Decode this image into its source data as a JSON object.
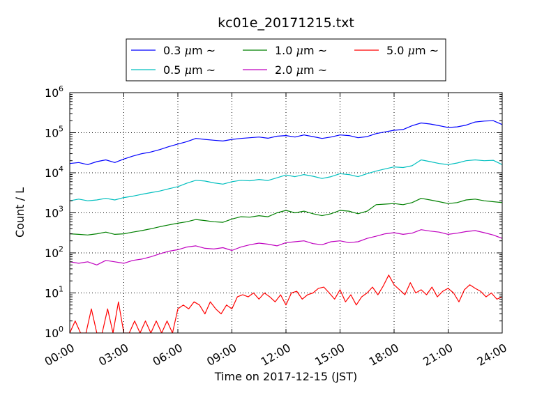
{
  "chart_data": {
    "type": "line",
    "title": "kc01e_20171215.txt",
    "xlabel": "Time on 2017-12-15 (JST)",
    "ylabel": "Count / L",
    "yscale": "log",
    "xlim": [
      0,
      24
    ],
    "ylim": [
      1,
      1000000
    ],
    "x_unit": "hour",
    "grid": true,
    "legend_position": "top-center (above plot)",
    "x_tick_labels": [
      "00:00",
      "03:00",
      "06:00",
      "09:00",
      "12:00",
      "15:00",
      "18:00",
      "21:00",
      "24:00"
    ],
    "x_ticks": [
      0,
      3,
      6,
      9,
      12,
      15,
      18,
      21,
      24
    ],
    "y_ticks": [
      {
        "value": 1,
        "base": "10",
        "exp": "0"
      },
      {
        "value": 10,
        "base": "10",
        "exp": "1"
      },
      {
        "value": 100,
        "base": "10",
        "exp": "2"
      },
      {
        "value": 1000,
        "base": "10",
        "exp": "3"
      },
      {
        "value": 10000,
        "base": "10",
        "exp": "4"
      },
      {
        "value": 100000,
        "base": "10",
        "exp": "5"
      },
      {
        "value": 1000000,
        "base": "10",
        "exp": "6"
      }
    ],
    "series": [
      {
        "name": "0.3 μm ~",
        "legend_prefix": "0.3 ",
        "legend_unit": "μm",
        "legend_suffix": "~",
        "color": "#0000ff",
        "x": [
          0,
          0.5,
          1,
          1.5,
          2,
          2.5,
          3,
          3.5,
          4,
          4.5,
          5,
          5.5,
          6,
          6.5,
          7,
          7.5,
          8,
          8.5,
          9,
          9.5,
          10,
          10.5,
          11,
          11.5,
          12,
          12.5,
          13,
          13.5,
          14,
          14.5,
          15,
          15.5,
          16,
          16.5,
          17,
          17.5,
          18,
          18.5,
          19,
          19.5,
          20,
          20.5,
          21,
          21.5,
          22,
          22.5,
          23,
          23.5,
          24
        ],
        "y": [
          17000,
          18000,
          16000,
          19000,
          21000,
          18000,
          22000,
          26000,
          30000,
          33000,
          38000,
          45000,
          52000,
          60000,
          72000,
          68000,
          65000,
          62000,
          68000,
          72000,
          75000,
          78000,
          73000,
          82000,
          85000,
          78000,
          88000,
          80000,
          72000,
          78000,
          88000,
          85000,
          75000,
          80000,
          95000,
          105000,
          115000,
          120000,
          150000,
          175000,
          165000,
          150000,
          135000,
          140000,
          155000,
          185000,
          195000,
          200000,
          160000
        ]
      },
      {
        "name": "0.5 μm ~",
        "legend_prefix": "0.5 ",
        "legend_unit": "μm",
        "legend_suffix": "~",
        "color": "#00bfbf",
        "x": [
          0,
          0.5,
          1,
          1.5,
          2,
          2.5,
          3,
          3.5,
          4,
          4.5,
          5,
          5.5,
          6,
          6.5,
          7,
          7.5,
          8,
          8.5,
          9,
          9.5,
          10,
          10.5,
          11,
          11.5,
          12,
          12.5,
          13,
          13.5,
          14,
          14.5,
          15,
          15.5,
          16,
          16.5,
          17,
          17.5,
          18,
          18.5,
          19,
          19.5,
          20,
          20.5,
          21,
          21.5,
          22,
          22.5,
          23,
          23.5,
          24
        ],
        "y": [
          2000,
          2200,
          2000,
          2100,
          2300,
          2100,
          2400,
          2600,
          2900,
          3200,
          3500,
          4000,
          4500,
          5500,
          6500,
          6200,
          5600,
          5200,
          6000,
          6500,
          6300,
          6800,
          6400,
          7500,
          8800,
          8000,
          9000,
          8200,
          7200,
          8000,
          9500,
          9000,
          8000,
          9500,
          11000,
          12500,
          14000,
          13500,
          15000,
          21000,
          19000,
          17000,
          16000,
          17500,
          20000,
          21000,
          20000,
          20500,
          16000
        ]
      },
      {
        "name": "1.0 μm ~",
        "legend_prefix": "1.0 ",
        "legend_unit": "μm",
        "legend_suffix": "~",
        "color": "#008000",
        "x": [
          0,
          0.5,
          1,
          1.5,
          2,
          2.5,
          3,
          3.5,
          4,
          4.5,
          5,
          5.5,
          6,
          6.5,
          7,
          7.5,
          8,
          8.5,
          9,
          9.5,
          10,
          10.5,
          11,
          11.5,
          12,
          12.5,
          13,
          13.5,
          14,
          14.5,
          15,
          15.5,
          16,
          16.5,
          17,
          17.5,
          18,
          18.5,
          19,
          19.5,
          20,
          20.5,
          21,
          21.5,
          22,
          22.5,
          23,
          23.5,
          24
        ],
        "y": [
          300,
          290,
          280,
          300,
          330,
          290,
          300,
          330,
          360,
          400,
          450,
          500,
          550,
          600,
          680,
          640,
          600,
          580,
          700,
          800,
          780,
          850,
          800,
          1000,
          1150,
          1000,
          1100,
          950,
          850,
          950,
          1150,
          1100,
          950,
          1100,
          1600,
          1650,
          1700,
          1600,
          1800,
          2300,
          2100,
          1900,
          1700,
          1800,
          2100,
          2200,
          2000,
          1900,
          1800
        ]
      },
      {
        "name": "2.0 μm ~",
        "legend_prefix": "2.0 ",
        "legend_unit": "μm",
        "legend_suffix": "~",
        "color": "#bf00bf",
        "x": [
          0,
          0.5,
          1,
          1.5,
          2,
          2.5,
          3,
          3.5,
          4,
          4.5,
          5,
          5.5,
          6,
          6.5,
          7,
          7.5,
          8,
          8.5,
          9,
          9.5,
          10,
          10.5,
          11,
          11.5,
          12,
          12.5,
          13,
          13.5,
          14,
          14.5,
          15,
          15.5,
          16,
          16.5,
          17,
          17.5,
          18,
          18.5,
          19,
          19.5,
          20,
          20.5,
          21,
          21.5,
          22,
          22.5,
          23,
          23.5,
          24
        ],
        "y": [
          60,
          55,
          60,
          50,
          65,
          60,
          55,
          65,
          70,
          80,
          95,
          110,
          120,
          140,
          150,
          130,
          125,
          135,
          115,
          140,
          160,
          175,
          165,
          150,
          180,
          190,
          200,
          170,
          160,
          190,
          200,
          180,
          190,
          230,
          260,
          300,
          320,
          290,
          310,
          380,
          350,
          330,
          290,
          310,
          340,
          360,
          320,
          280,
          230
        ]
      },
      {
        "name": "5.0 μm ~",
        "legend_prefix": "5.0 ",
        "legend_unit": "μm",
        "legend_suffix": "~",
        "color": "#ff0000",
        "x": [
          0,
          0.3,
          0.6,
          0.9,
          1.2,
          1.5,
          1.8,
          2.1,
          2.4,
          2.7,
          3.0,
          3.3,
          3.6,
          3.9,
          4.2,
          4.5,
          4.8,
          5.1,
          5.4,
          5.7,
          6.0,
          6.3,
          6.6,
          6.9,
          7.2,
          7.5,
          7.8,
          8.1,
          8.4,
          8.7,
          9.0,
          9.3,
          9.6,
          9.9,
          10.2,
          10.5,
          10.8,
          11.1,
          11.4,
          11.7,
          12.0,
          12.3,
          12.6,
          12.9,
          13.2,
          13.5,
          13.8,
          14.1,
          14.4,
          14.7,
          15.0,
          15.3,
          15.6,
          15.9,
          16.2,
          16.5,
          16.8,
          17.1,
          17.4,
          17.7,
          18.0,
          18.3,
          18.6,
          18.9,
          19.2,
          19.5,
          19.8,
          20.1,
          20.4,
          20.7,
          21.0,
          21.3,
          21.6,
          21.9,
          22.2,
          22.5,
          22.8,
          23.1,
          23.4,
          23.7,
          24.0
        ],
        "y": [
          1,
          2,
          1,
          1,
          4,
          1,
          1,
          4,
          1,
          6,
          1,
          1,
          2,
          1,
          2,
          1,
          2,
          1,
          2,
          1,
          4,
          5,
          4,
          6,
          5,
          3,
          6,
          4,
          3,
          5,
          4,
          8,
          9,
          8,
          10,
          7,
          10,
          8,
          6,
          9,
          5,
          10,
          11,
          7,
          9,
          10,
          13,
          14,
          10,
          7,
          12,
          6,
          9,
          5,
          8,
          10,
          14,
          9,
          15,
          28,
          16,
          12,
          9,
          18,
          10,
          12,
          9,
          14,
          8,
          11,
          13,
          10,
          6,
          12,
          16,
          13,
          11,
          8,
          10,
          7,
          8
        ]
      }
    ]
  }
}
